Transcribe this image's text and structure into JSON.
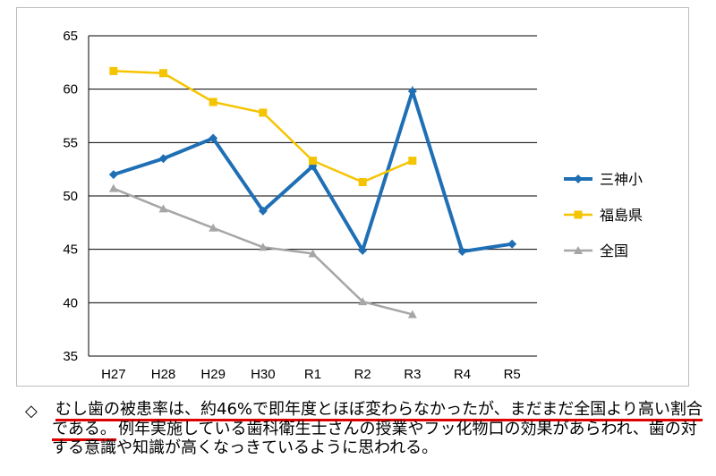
{
  "chart_data": {
    "type": "line",
    "categories": [
      "H27",
      "H28",
      "H29",
      "H30",
      "R1",
      "R2",
      "R3",
      "R4",
      "R5"
    ],
    "ylim": [
      35,
      65
    ],
    "yticks": [
      35,
      40,
      45,
      50,
      55,
      60,
      65
    ],
    "grid": true,
    "legend_position": "right",
    "series": [
      {
        "name": "三神小",
        "color": "#1f6fb5",
        "marker": "diamond",
        "values": [
          52.0,
          53.5,
          55.4,
          48.6,
          52.8,
          44.9,
          59.8,
          44.8,
          45.5
        ]
      },
      {
        "name": "福島県",
        "color": "#f5c400",
        "marker": "square",
        "values": [
          61.7,
          61.5,
          58.8,
          57.8,
          53.3,
          51.3,
          53.3,
          null,
          null
        ]
      },
      {
        "name": "全国",
        "color": "#a6a6a6",
        "marker": "triangle",
        "values": [
          50.7,
          48.8,
          47.0,
          45.2,
          44.6,
          40.1,
          38.9,
          null,
          null
        ]
      }
    ]
  },
  "note": {
    "bullet": "◇",
    "line1": "むし歯の被患率は、約46%で即年度とほぼ変わらなかったが、まだまだ全国より高い割合",
    "line2a": "である。",
    "line2b": "例年実施している歯科衛生士さんの授業やフッ化物口の効果があらわれ、歯の対",
    "line3": "する意識や知識が高くなっきているように思われる。"
  }
}
